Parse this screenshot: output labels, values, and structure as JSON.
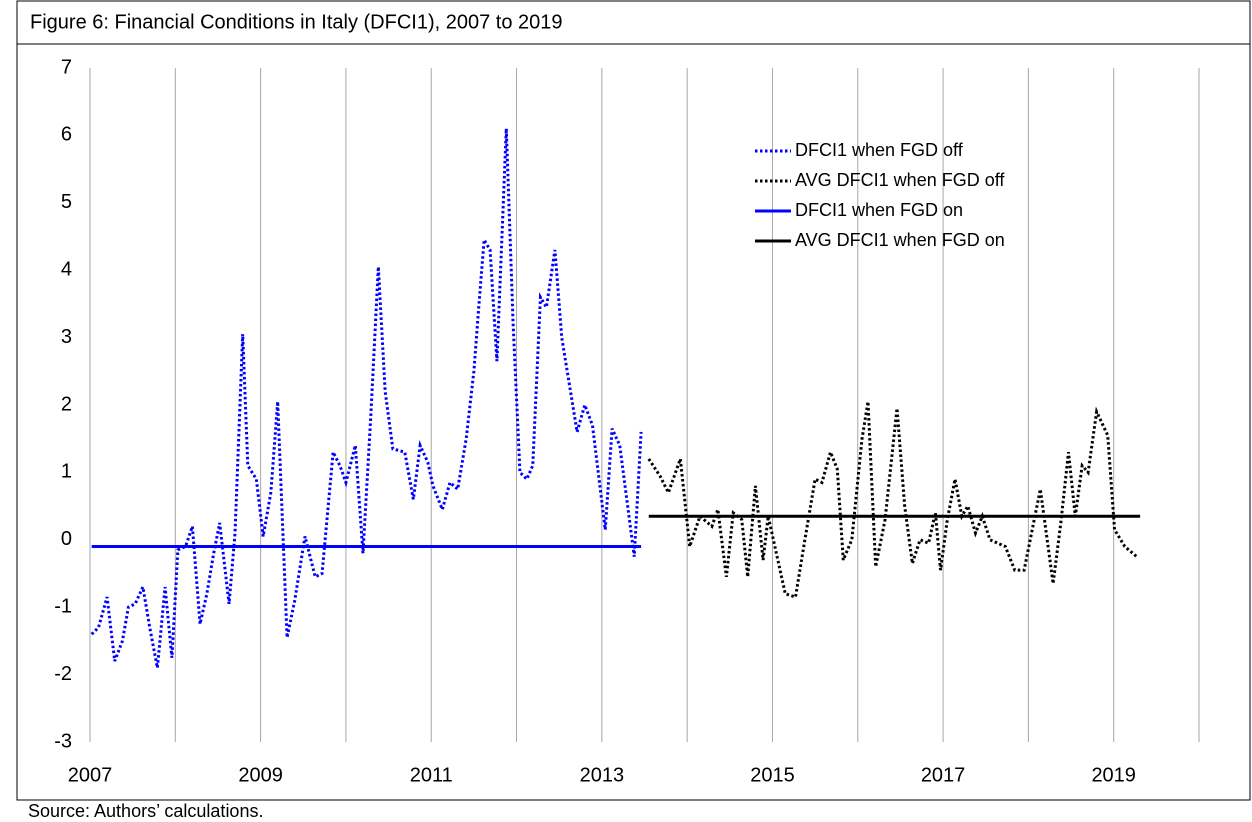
{
  "chart_data": {
    "type": "line",
    "title": "Figure 6: Financial Conditions in Italy (DFCI1), 2007 to 2019",
    "source": "Source: Authors’ calculations.",
    "xlim": [
      2007,
      2020
    ],
    "xticks": [
      2007,
      2009,
      2011,
      2013,
      2015,
      2017,
      2019
    ],
    "x_gridlines": [
      2007,
      2008,
      2009,
      2010,
      2011,
      2012,
      2013,
      2014,
      2015,
      2016,
      2017,
      2018,
      2019,
      2020
    ],
    "ylim": [
      -3,
      7
    ],
    "yticks": [
      -3,
      -2,
      -1,
      0,
      1,
      2,
      3,
      4,
      5,
      6,
      7
    ],
    "grid": "x",
    "legend": "upper right",
    "series": [
      {
        "name": "DFCI1 when FGD off",
        "color": "#0000ff",
        "style": "dotted",
        "x": [
          2007.02,
          2007.1,
          2007.2,
          2007.29,
          2007.38,
          2007.45,
          2007.53,
          2007.62,
          2007.7,
          2007.79,
          2007.88,
          2007.96,
          2008.03,
          2008.12,
          2008.2,
          2008.29,
          2008.37,
          2008.45,
          2008.52,
          2008.63,
          2008.7,
          2008.79,
          2008.85,
          2008.95,
          2009.03,
          2009.12,
          2009.2,
          2009.31,
          2009.4,
          2009.52,
          2009.64,
          2009.72,
          2009.85,
          2009.93,
          2010.0,
          2010.11,
          2010.2,
          2010.29,
          2010.38,
          2010.46,
          2010.55,
          2010.69,
          2010.79,
          2010.87,
          2010.96,
          2011.02,
          2011.13,
          2011.22,
          2011.31,
          2011.41,
          2011.5,
          2011.56,
          2011.62,
          2011.69,
          2011.77,
          2011.88,
          2011.96,
          2012.04,
          2012.12,
          2012.19,
          2012.28,
          2012.35,
          2012.45,
          2012.53,
          2012.71,
          2012.8,
          2012.89,
          2013.04,
          2013.12,
          2013.21,
          2013.38,
          2013.46
        ],
        "values": [
          -1.4,
          -1.3,
          -0.85,
          -1.8,
          -1.5,
          -1.0,
          -0.95,
          -0.7,
          -1.3,
          -1.9,
          -0.7,
          -1.75,
          -0.15,
          -0.1,
          0.2,
          -1.25,
          -0.8,
          -0.2,
          0.25,
          -0.95,
          0.1,
          3.05,
          1.1,
          0.9,
          0.05,
          0.7,
          2.05,
          -1.45,
          -0.9,
          0.05,
          -0.55,
          -0.5,
          1.3,
          1.1,
          0.85,
          1.4,
          -0.2,
          1.8,
          4.05,
          2.2,
          1.35,
          1.3,
          0.6,
          1.4,
          1.15,
          0.8,
          0.45,
          0.85,
          0.75,
          1.5,
          2.5,
          3.5,
          4.45,
          4.3,
          2.65,
          6.1,
          3.2,
          1.0,
          0.9,
          1.1,
          3.6,
          3.45,
          4.3,
          3.0,
          1.6,
          2.0,
          1.7,
          0.15,
          1.65,
          1.4,
          -0.25,
          1.6
        ]
      },
      {
        "name": "AVG DFCI1 when FGD off",
        "color": "#000000",
        "style": "dotted",
        "x": [
          2013.55,
          2013.68,
          2013.78,
          2013.92,
          2014.03,
          2014.15,
          2014.29,
          2014.36,
          2014.46,
          2014.54,
          2014.64,
          2014.71,
          2014.8,
          2014.89,
          2014.95,
          2015.15,
          2015.27,
          2015.38,
          2015.5,
          2015.58,
          2015.68,
          2015.76,
          2015.83,
          2015.93,
          2016.05,
          2016.12,
          2016.21,
          2016.32,
          2016.46,
          2016.55,
          2016.64,
          2016.73,
          2016.83,
          2016.91,
          2016.97,
          2017.05,
          2017.14,
          2017.22,
          2017.29,
          2017.38,
          2017.46,
          2017.55,
          2017.73,
          2017.84,
          2017.95,
          2018.14,
          2018.29,
          2018.38,
          2018.47,
          2018.55,
          2018.63,
          2018.7,
          2018.8,
          2018.93,
          2019.01,
          2019.13,
          2019.27
        ],
        "values": [
          1.2,
          0.95,
          0.7,
          1.2,
          -0.1,
          0.35,
          0.2,
          0.45,
          -0.55,
          0.4,
          0.3,
          -0.55,
          0.8,
          -0.3,
          0.35,
          -0.8,
          -0.85,
          0.0,
          0.9,
          0.85,
          1.3,
          1.05,
          -0.3,
          0.0,
          1.5,
          2.05,
          -0.4,
          0.3,
          1.95,
          0.5,
          -0.35,
          0.0,
          -0.05,
          0.4,
          -0.45,
          0.3,
          0.9,
          0.35,
          0.5,
          0.1,
          0.35,
          0.0,
          -0.1,
          -0.45,
          -0.45,
          0.75,
          -0.65,
          0.25,
          1.3,
          0.35,
          1.1,
          1.0,
          1.9,
          1.55,
          0.15,
          -0.1,
          -0.25
        ]
      },
      {
        "name": "DFCI1 when FGD on",
        "color": "#0000ff",
        "style": "solid",
        "x": [
          2007.02,
          2013.46
        ],
        "values": [
          -0.1,
          -0.1
        ]
      },
      {
        "name": "AVG DFCI1 when FGD on",
        "color": "#000000",
        "style": "solid",
        "x": [
          2013.55,
          2019.31
        ],
        "values": [
          0.35,
          0.35
        ]
      }
    ]
  }
}
